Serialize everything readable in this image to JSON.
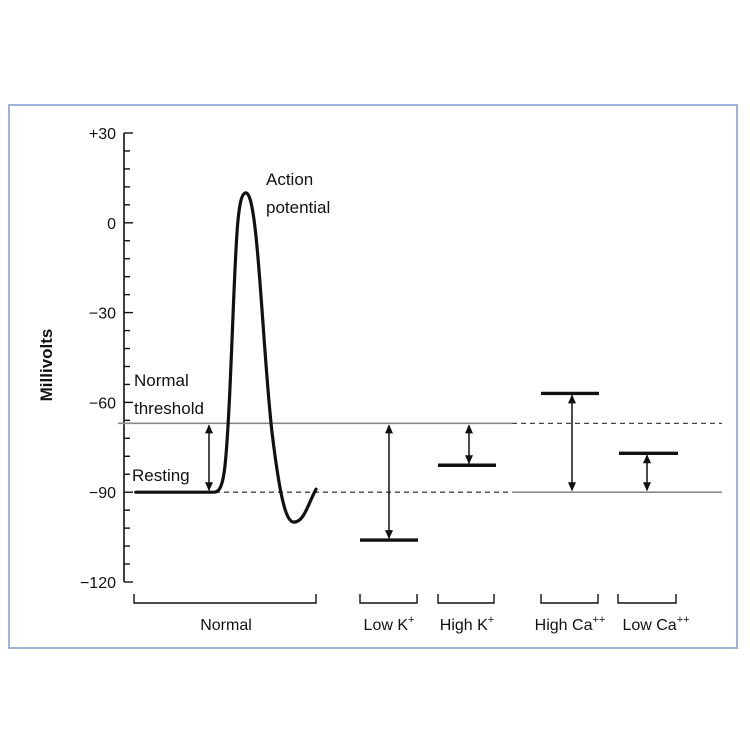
{
  "chart_data": {
    "type": "line",
    "ylabel": "Millivolts",
    "ylim": [
      -120,
      30
    ],
    "yticks": [
      {
        "value": 30,
        "label": "+30"
      },
      {
        "value": 0,
        "label": "0"
      },
      {
        "value": -30,
        "label": "−30"
      },
      {
        "value": -60,
        "label": "−60"
      },
      {
        "value": -90,
        "label": "−90"
      },
      {
        "value": -120,
        "label": "−120"
      }
    ],
    "minor_tick_step": 6,
    "normal_threshold": -67,
    "resting": -90,
    "action_potential_peak": 10,
    "action_potential_undershoot": -100,
    "annotations": {
      "action_potential": [
        "Action",
        "potential"
      ],
      "normal_threshold": [
        "Normal",
        "threshold"
      ],
      "resting": "Resting"
    },
    "conditions": [
      {
        "name": "Normal",
        "label": "Normal",
        "resting": -90,
        "threshold": -67
      },
      {
        "name": "Low K+",
        "label": "Low K",
        "sup": "+",
        "resting": -106,
        "threshold": -67
      },
      {
        "name": "High K+",
        "label": "High K",
        "sup": "+",
        "resting": -81,
        "threshold": -67
      },
      {
        "name": "High Ca++",
        "label": "High Ca",
        "sup": "++",
        "resting": -90,
        "threshold": -57
      },
      {
        "name": "Low Ca++",
        "label": "Low Ca",
        "sup": "++",
        "resting": -90,
        "threshold": -77
      }
    ]
  }
}
